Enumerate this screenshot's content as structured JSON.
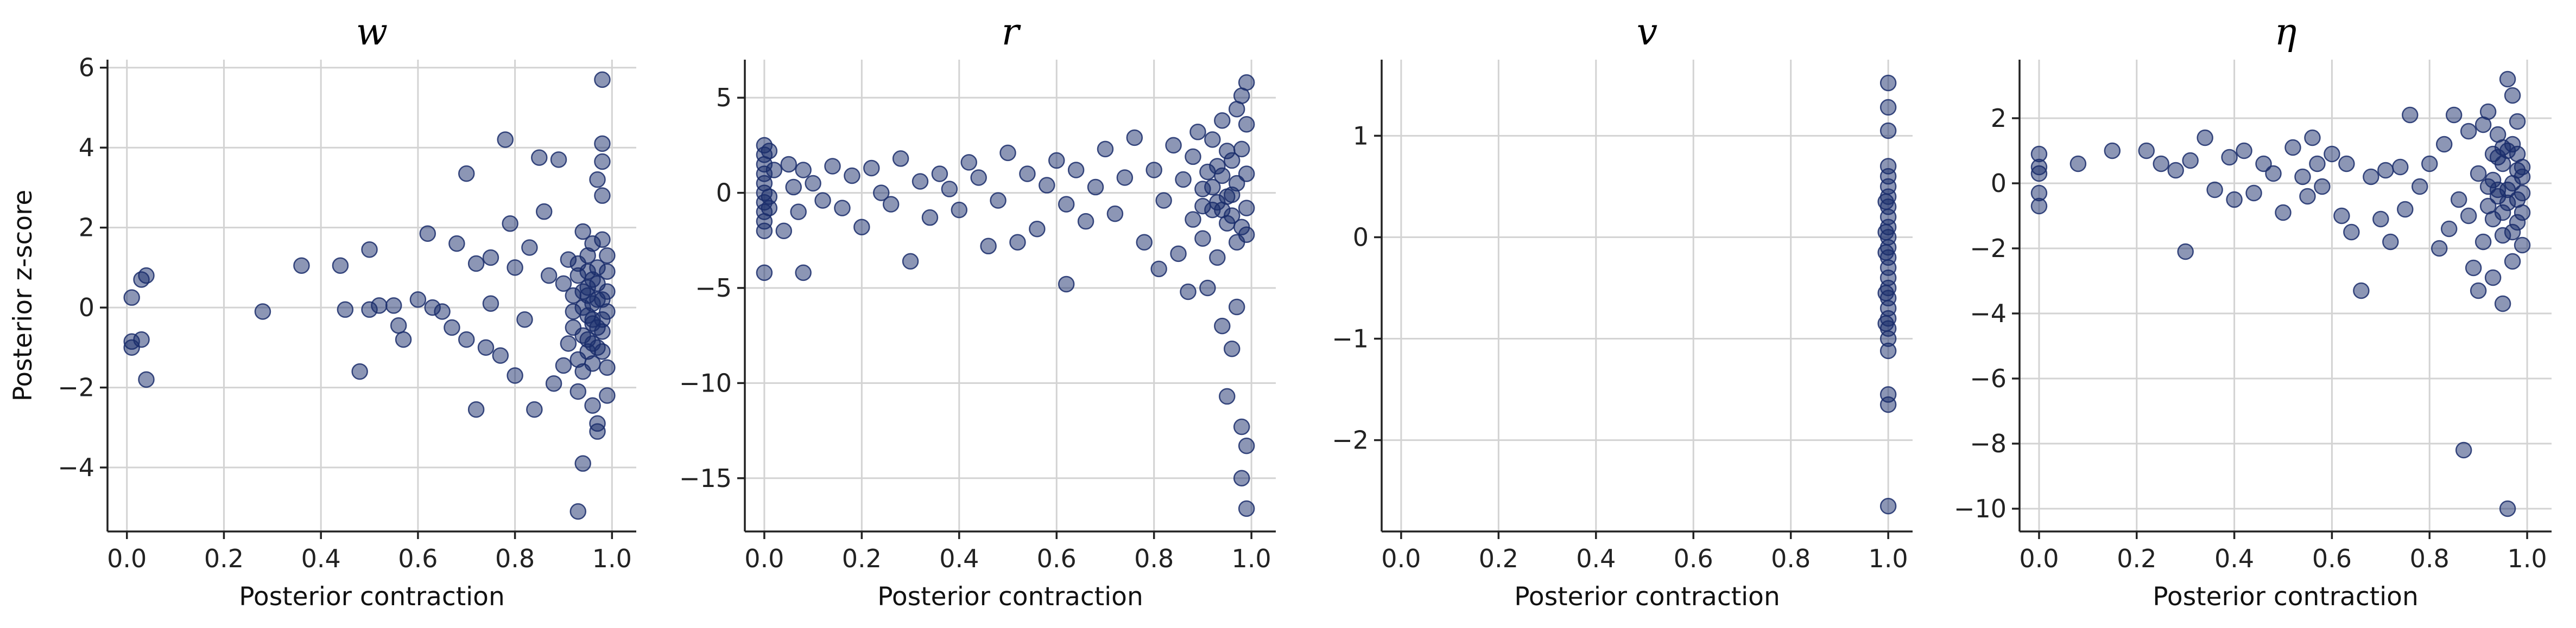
{
  "chart_data": [
    {
      "type": "scatter",
      "title": "w",
      "xlabel": "Posterior contraction",
      "ylabel": "Posterior z-score",
      "xlim": [
        -0.04,
        1.05
      ],
      "ylim": [
        -5.6,
        6.2
      ],
      "xticks": [
        0.0,
        0.2,
        0.4,
        0.6,
        0.8,
        1.0
      ],
      "xtick_labels": [
        "0.0",
        "0.2",
        "0.4",
        "0.6",
        "0.8",
        "1.0"
      ],
      "yticks": [
        -4,
        -2,
        0,
        2,
        4,
        6
      ],
      "ytick_labels": [
        "−4",
        "−2",
        "0",
        "2",
        "4",
        "6"
      ],
      "grid": true,
      "color": "#1a2d6b",
      "points": [
        [
          0.01,
          0.25
        ],
        [
          0.01,
          -0.85
        ],
        [
          0.01,
          -1.0
        ],
        [
          0.03,
          0.7
        ],
        [
          0.04,
          0.8
        ],
        [
          0.03,
          -0.8
        ],
        [
          0.04,
          -1.8
        ],
        [
          0.28,
          -0.1
        ],
        [
          0.36,
          1.05
        ],
        [
          0.44,
          1.05
        ],
        [
          0.45,
          -0.05
        ],
        [
          0.48,
          -1.6
        ],
        [
          0.5,
          1.45
        ],
        [
          0.5,
          -0.05
        ],
        [
          0.52,
          0.05
        ],
        [
          0.55,
          0.05
        ],
        [
          0.56,
          -0.45
        ],
        [
          0.57,
          -0.8
        ],
        [
          0.6,
          0.2
        ],
        [
          0.62,
          1.85
        ],
        [
          0.63,
          0.0
        ],
        [
          0.65,
          -0.1
        ],
        [
          0.67,
          -0.5
        ],
        [
          0.68,
          1.6
        ],
        [
          0.7,
          3.35
        ],
        [
          0.7,
          -0.8
        ],
        [
          0.72,
          -2.55
        ],
        [
          0.72,
          1.1
        ],
        [
          0.74,
          -1.0
        ],
        [
          0.75,
          1.25
        ],
        [
          0.75,
          0.1
        ],
        [
          0.77,
          -1.2
        ],
        [
          0.78,
          4.2
        ],
        [
          0.79,
          2.1
        ],
        [
          0.8,
          1.0
        ],
        [
          0.8,
          -1.7
        ],
        [
          0.82,
          -0.3
        ],
        [
          0.83,
          1.5
        ],
        [
          0.84,
          -2.55
        ],
        [
          0.85,
          3.75
        ],
        [
          0.86,
          2.4
        ],
        [
          0.87,
          0.8
        ],
        [
          0.88,
          -1.9
        ],
        [
          0.89,
          3.7
        ],
        [
          0.9,
          -1.45
        ],
        [
          0.91,
          1.2
        ],
        [
          0.92,
          -0.5
        ],
        [
          0.93,
          -2.1
        ],
        [
          0.94,
          -3.9
        ],
        [
          0.94,
          1.9
        ],
        [
          0.95,
          -1.1
        ],
        [
          0.95,
          0.5
        ],
        [
          0.96,
          -2.45
        ],
        [
          0.96,
          -0.3
        ],
        [
          0.97,
          3.2
        ],
        [
          0.97,
          -3.1
        ],
        [
          0.97,
          -2.9
        ],
        [
          0.98,
          4.1
        ],
        [
          0.98,
          5.7
        ],
        [
          0.98,
          3.65
        ],
        [
          0.98,
          2.8
        ],
        [
          0.99,
          -2.2
        ],
        [
          0.99,
          1.3
        ],
        [
          0.93,
          -5.1
        ],
        [
          0.9,
          0.6
        ],
        [
          0.91,
          -0.9
        ],
        [
          0.92,
          0.3
        ],
        [
          0.93,
          1.1
        ],
        [
          0.94,
          -0.7
        ],
        [
          0.95,
          0.9
        ],
        [
          0.96,
          -1.4
        ],
        [
          0.97,
          0.2
        ],
        [
          0.98,
          -0.6
        ],
        [
          0.99,
          0.4
        ],
        [
          0.96,
          1.6
        ],
        [
          0.94,
          0.0
        ],
        [
          0.97,
          -1.0
        ],
        [
          0.95,
          -0.2
        ],
        [
          0.93,
          -1.3
        ],
        [
          0.98,
          1.7
        ],
        [
          0.99,
          -1.5
        ],
        [
          0.96,
          0.7
        ],
        [
          0.92,
          -0.1
        ],
        [
          0.97,
          1.0
        ],
        [
          0.98,
          -0.3
        ],
        [
          0.94,
          0.4
        ],
        [
          0.95,
          -0.8
        ],
        [
          0.96,
          0.1
        ],
        [
          0.97,
          -0.5
        ],
        [
          0.99,
          0.9
        ],
        [
          0.93,
          0.8
        ],
        [
          0.98,
          -1.1
        ],
        [
          0.96,
          -0.9
        ],
        [
          0.95,
          1.3
        ],
        [
          0.97,
          0.6
        ],
        [
          0.94,
          -1.6
        ],
        [
          0.99,
          -0.1
        ],
        [
          0.98,
          0.2
        ],
        [
          0.96,
          -0.4
        ],
        [
          0.95,
          0.3
        ]
      ]
    },
    {
      "type": "scatter",
      "title": "r",
      "xlabel": "Posterior contraction",
      "ylabel": "",
      "xlim": [
        -0.04,
        1.05
      ],
      "ylim": [
        -17.8,
        7.0
      ],
      "xticks": [
        0.0,
        0.2,
        0.4,
        0.6,
        0.8,
        1.0
      ],
      "xtick_labels": [
        "0.0",
        "0.2",
        "0.4",
        "0.6",
        "0.8",
        "1.0"
      ],
      "yticks": [
        -15,
        -10,
        -5,
        0,
        5
      ],
      "ytick_labels": [
        "−15",
        "−10",
        "−5",
        "0",
        "5"
      ],
      "grid": true,
      "color": "#1a2d6b",
      "points": [
        [
          0.0,
          2.5
        ],
        [
          0.0,
          2.0
        ],
        [
          0.0,
          1.5
        ],
        [
          0.0,
          1.0
        ],
        [
          0.0,
          0.5
        ],
        [
          0.0,
          0.0
        ],
        [
          0.0,
          -0.5
        ],
        [
          0.0,
          -1.0
        ],
        [
          0.0,
          -1.5
        ],
        [
          0.0,
          -2.0
        ],
        [
          0.0,
          -4.2
        ],
        [
          0.01,
          2.2
        ],
        [
          0.01,
          -0.2
        ],
        [
          0.01,
          -0.8
        ],
        [
          0.02,
          1.2
        ],
        [
          0.04,
          -2.0
        ],
        [
          0.05,
          1.5
        ],
        [
          0.06,
          0.3
        ],
        [
          0.07,
          -1.0
        ],
        [
          0.08,
          1.2
        ],
        [
          0.08,
          -4.2
        ],
        [
          0.1,
          0.5
        ],
        [
          0.12,
          -0.4
        ],
        [
          0.14,
          1.4
        ],
        [
          0.16,
          -0.8
        ],
        [
          0.18,
          0.9
        ],
        [
          0.2,
          -1.8
        ],
        [
          0.22,
          1.3
        ],
        [
          0.24,
          0.0
        ],
        [
          0.26,
          -0.6
        ],
        [
          0.28,
          1.8
        ],
        [
          0.3,
          -3.6
        ],
        [
          0.32,
          0.6
        ],
        [
          0.34,
          -1.3
        ],
        [
          0.36,
          1.0
        ],
        [
          0.38,
          0.2
        ],
        [
          0.4,
          -0.9
        ],
        [
          0.42,
          1.6
        ],
        [
          0.44,
          0.8
        ],
        [
          0.46,
          -2.8
        ],
        [
          0.48,
          -0.4
        ],
        [
          0.5,
          2.1
        ],
        [
          0.52,
          -2.6
        ],
        [
          0.54,
          1.0
        ],
        [
          0.56,
          -1.9
        ],
        [
          0.58,
          0.4
        ],
        [
          0.6,
          1.7
        ],
        [
          0.62,
          -4.8
        ],
        [
          0.62,
          -0.6
        ],
        [
          0.64,
          1.2
        ],
        [
          0.66,
          -1.5
        ],
        [
          0.68,
          0.3
        ],
        [
          0.7,
          2.3
        ],
        [
          0.72,
          -1.1
        ],
        [
          0.74,
          0.8
        ],
        [
          0.76,
          2.9
        ],
        [
          0.78,
          -2.6
        ],
        [
          0.8,
          1.2
        ],
        [
          0.81,
          -4.0
        ],
        [
          0.82,
          -0.4
        ],
        [
          0.84,
          2.5
        ],
        [
          0.85,
          -3.2
        ],
        [
          0.86,
          0.7
        ],
        [
          0.87,
          -5.2
        ],
        [
          0.88,
          1.9
        ],
        [
          0.88,
          -1.4
        ],
        [
          0.89,
          3.2
        ],
        [
          0.9,
          -2.4
        ],
        [
          0.9,
          0.2
        ],
        [
          0.91,
          -5.0
        ],
        [
          0.92,
          2.8
        ],
        [
          0.92,
          -0.9
        ],
        [
          0.93,
          1.4
        ],
        [
          0.93,
          -3.4
        ],
        [
          0.94,
          -7.0
        ],
        [
          0.94,
          3.8
        ],
        [
          0.95,
          -0.2
        ],
        [
          0.95,
          -10.7
        ],
        [
          0.96,
          -8.2
        ],
        [
          0.96,
          1.7
        ],
        [
          0.97,
          -6.0
        ],
        [
          0.97,
          4.4
        ],
        [
          0.98,
          -12.3
        ],
        [
          0.98,
          -15.0
        ],
        [
          0.99,
          -13.3
        ],
        [
          0.99,
          -16.6
        ],
        [
          0.99,
          5.8
        ],
        [
          0.98,
          5.1
        ],
        [
          0.99,
          3.6
        ],
        [
          0.99,
          -0.8
        ],
        [
          0.99,
          1.0
        ],
        [
          0.98,
          -1.8
        ],
        [
          0.97,
          0.5
        ],
        [
          0.96,
          -1.2
        ],
        [
          0.95,
          2.2
        ],
        [
          0.94,
          0.9
        ],
        [
          0.93,
          -0.5
        ],
        [
          0.92,
          0.3
        ],
        [
          0.91,
          1.1
        ],
        [
          0.9,
          -0.7
        ],
        [
          0.97,
          -2.6
        ],
        [
          0.96,
          -0.1
        ],
        [
          0.98,
          2.3
        ],
        [
          0.95,
          -1.6
        ],
        [
          0.94,
          -0.9
        ],
        [
          0.99,
          -2.2
        ]
      ]
    },
    {
      "type": "scatter",
      "title": "v",
      "xlabel": "Posterior contraction",
      "ylabel": "",
      "xlim": [
        -0.04,
        1.05
      ],
      "ylim": [
        -2.9,
        1.75
      ],
      "xticks": [
        0.0,
        0.2,
        0.4,
        0.6,
        0.8,
        1.0
      ],
      "xtick_labels": [
        "0.0",
        "0.2",
        "0.4",
        "0.6",
        "0.8",
        "1.0"
      ],
      "yticks": [
        -2,
        -1,
        0,
        1
      ],
      "ytick_labels": [
        "−2",
        "−1",
        "0",
        "1"
      ],
      "grid": true,
      "color": "#1a2d6b",
      "points": [
        [
          1.0,
          1.52
        ],
        [
          1.0,
          1.28
        ],
        [
          1.0,
          1.05
        ],
        [
          1.0,
          0.7
        ],
        [
          1.0,
          0.6
        ],
        [
          1.0,
          0.5
        ],
        [
          1.0,
          0.4
        ],
        [
          1.0,
          0.3
        ],
        [
          1.0,
          0.2
        ],
        [
          1.0,
          0.1
        ],
        [
          1.0,
          0.0
        ],
        [
          1.0,
          -0.1
        ],
        [
          1.0,
          -0.2
        ],
        [
          1.0,
          -0.3
        ],
        [
          1.0,
          -0.4
        ],
        [
          1.0,
          -0.5
        ],
        [
          1.0,
          -0.6
        ],
        [
          1.0,
          -0.7
        ],
        [
          1.0,
          -0.8
        ],
        [
          1.0,
          -0.9
        ],
        [
          1.0,
          -1.0
        ],
        [
          1.0,
          -1.12
        ],
        [
          1.0,
          -1.55
        ],
        [
          1.0,
          -1.65
        ],
        [
          1.0,
          -2.65
        ],
        [
          0.995,
          0.35
        ],
        [
          0.995,
          -0.15
        ],
        [
          0.995,
          -0.55
        ],
        [
          0.995,
          0.05
        ],
        [
          0.995,
          -0.85
        ]
      ]
    },
    {
      "type": "scatter",
      "title": "η",
      "xlabel": "Posterior contraction",
      "ylabel": "",
      "xlim": [
        -0.04,
        1.05
      ],
      "ylim": [
        -10.7,
        3.8
      ],
      "xticks": [
        0.0,
        0.2,
        0.4,
        0.6,
        0.8,
        1.0
      ],
      "xtick_labels": [
        "0.0",
        "0.2",
        "0.4",
        "0.6",
        "0.8",
        "1.0"
      ],
      "yticks": [
        -10,
        -8,
        -6,
        -4,
        -2,
        0,
        2
      ],
      "ytick_labels": [
        "−10",
        "−8",
        "−6",
        "−4",
        "−2",
        "0",
        "2"
      ],
      "grid": true,
      "color": "#1a2d6b",
      "points": [
        [
          0.0,
          0.9
        ],
        [
          0.0,
          0.5
        ],
        [
          0.0,
          0.3
        ],
        [
          0.0,
          -0.3
        ],
        [
          0.0,
          -0.7
        ],
        [
          0.08,
          0.6
        ],
        [
          0.15,
          1.0
        ],
        [
          0.22,
          1.0
        ],
        [
          0.25,
          0.6
        ],
        [
          0.28,
          0.4
        ],
        [
          0.3,
          -2.1
        ],
        [
          0.31,
          0.7
        ],
        [
          0.34,
          1.4
        ],
        [
          0.36,
          -0.2
        ],
        [
          0.39,
          0.8
        ],
        [
          0.4,
          -0.5
        ],
        [
          0.42,
          1.0
        ],
        [
          0.44,
          -0.3
        ],
        [
          0.46,
          0.6
        ],
        [
          0.48,
          0.3
        ],
        [
          0.5,
          -0.9
        ],
        [
          0.52,
          1.1
        ],
        [
          0.54,
          0.2
        ],
        [
          0.55,
          -0.4
        ],
        [
          0.56,
          1.4
        ],
        [
          0.57,
          0.6
        ],
        [
          0.58,
          -0.1
        ],
        [
          0.6,
          0.9
        ],
        [
          0.62,
          -1.0
        ],
        [
          0.63,
          0.6
        ],
        [
          0.64,
          -1.5
        ],
        [
          0.66,
          -3.3
        ],
        [
          0.68,
          0.2
        ],
        [
          0.7,
          -1.1
        ],
        [
          0.71,
          0.4
        ],
        [
          0.72,
          -1.8
        ],
        [
          0.74,
          0.5
        ],
        [
          0.75,
          -0.8
        ],
        [
          0.76,
          2.1
        ],
        [
          0.78,
          -0.1
        ],
        [
          0.8,
          0.6
        ],
        [
          0.82,
          -2.0
        ],
        [
          0.83,
          1.2
        ],
        [
          0.84,
          -1.4
        ],
        [
          0.85,
          2.1
        ],
        [
          0.86,
          -0.5
        ],
        [
          0.87,
          -8.2
        ],
        [
          0.88,
          -1.0
        ],
        [
          0.88,
          1.6
        ],
        [
          0.89,
          -2.6
        ],
        [
          0.9,
          0.3
        ],
        [
          0.9,
          -3.3
        ],
        [
          0.91,
          1.8
        ],
        [
          0.91,
          -1.8
        ],
        [
          0.92,
          -0.7
        ],
        [
          0.92,
          2.2
        ],
        [
          0.93,
          0.9
        ],
        [
          0.93,
          -2.9
        ],
        [
          0.94,
          -0.4
        ],
        [
          0.94,
          1.5
        ],
        [
          0.95,
          -3.7
        ],
        [
          0.95,
          -1.6
        ],
        [
          0.96,
          -10.0
        ],
        [
          0.96,
          3.2
        ],
        [
          0.97,
          2.7
        ],
        [
          0.97,
          -2.4
        ],
        [
          0.98,
          1.9
        ],
        [
          0.98,
          -1.2
        ],
        [
          0.99,
          0.5
        ],
        [
          0.99,
          -0.9
        ],
        [
          0.93,
          0.1
        ],
        [
          0.94,
          -0.2
        ],
        [
          0.95,
          0.6
        ],
        [
          0.96,
          -0.6
        ],
        [
          0.97,
          0.0
        ],
        [
          0.98,
          0.4
        ],
        [
          0.99,
          -0.3
        ],
        [
          0.92,
          -0.1
        ],
        [
          0.96,
          1.0
        ],
        [
          0.97,
          -1.5
        ],
        [
          0.95,
          -0.9
        ],
        [
          0.94,
          0.8
        ],
        [
          0.98,
          -0.5
        ],
        [
          0.99,
          0.2
        ],
        [
          0.97,
          1.2
        ],
        [
          0.96,
          -0.2
        ],
        [
          0.93,
          -1.1
        ],
        [
          0.95,
          1.1
        ],
        [
          0.98,
          0.9
        ],
        [
          0.99,
          -1.9
        ]
      ]
    }
  ]
}
